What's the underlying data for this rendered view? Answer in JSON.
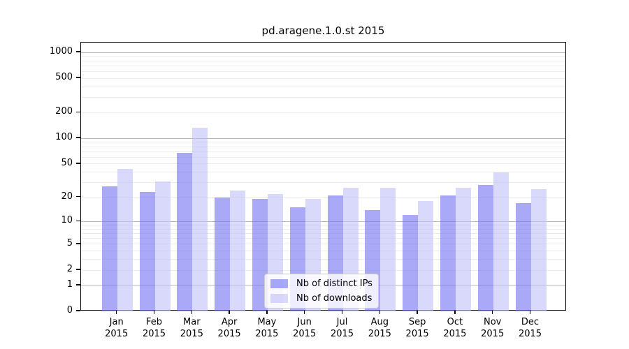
{
  "title": "pd.aragene.1.0.st 2015",
  "chart_data": {
    "type": "bar",
    "title": "pd.aragene.1.0.st 2015",
    "categories": [
      "Jan 2015",
      "Feb 2015",
      "Mar 2015",
      "Apr 2015",
      "May 2015",
      "Jun 2015",
      "Jul 2015",
      "Aug 2015",
      "Sep 2015",
      "Oct 2015",
      "Nov 2015",
      "Dec 2015"
    ],
    "series": [
      {
        "name": "Nb of distinct IPs",
        "color": "#6f6ff2",
        "values": [
          27,
          23,
          68,
          20,
          19,
          15,
          21,
          14,
          12,
          21,
          28,
          17
        ]
      },
      {
        "name": "Nb of downloads",
        "color": "#bfbff8",
        "values": [
          44,
          31,
          132,
          24,
          22,
          19,
          26,
          26,
          18,
          26,
          40,
          25
        ]
      }
    ],
    "y_ticks": [
      0,
      1,
      2,
      5,
      10,
      20,
      50,
      100,
      200,
      500,
      1000
    ],
    "y_scale": "log10(value+1)",
    "ylim": [
      0,
      1300
    ],
    "grid": true,
    "legend_position": "bottom-center"
  },
  "colors": {
    "bar_ips": "#6f6ff2",
    "bar_downloads": "#bfbff8",
    "grid_major": "#b8b8b8",
    "grid_minor": "#ececec",
    "spine": "#000000",
    "legend_border": "#cccccc",
    "legend_background": "#ffffff",
    "text": "#000000",
    "background": "#ffffff"
  }
}
